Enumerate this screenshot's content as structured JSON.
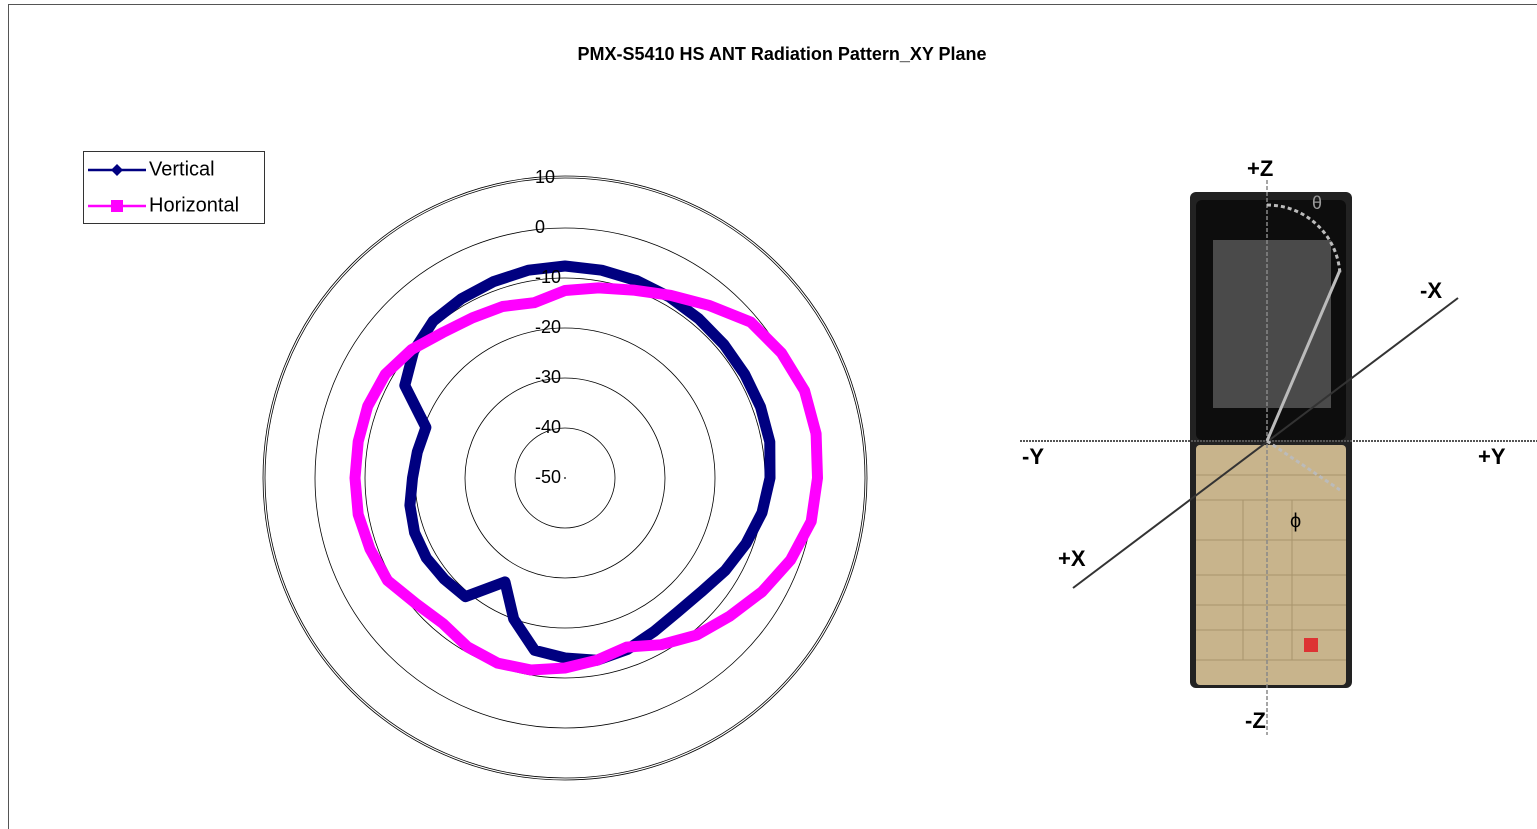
{
  "chart_data": {
    "type": "radar",
    "title": "PMX-S5410 HS ANT Radiation Pattern_XY Plane",
    "categories": [
      null,
      null,
      null,
      null,
      null,
      null,
      null,
      null,
      null,
      null,
      null,
      null,
      null,
      null,
      null,
      null,
      null,
      null,
      null,
      null,
      null,
      null,
      null,
      null,
      null,
      null,
      null,
      null,
      null,
      null,
      null,
      null,
      null,
      null,
      null,
      null
    ],
    "series": [
      {
        "name": "Vertical",
        "color": "#000080",
        "values": [
          -7.6,
          -7.8,
          -8,
          -8.2,
          -8.4,
          -8.5,
          -8.5,
          -8.4,
          -8.4,
          -9,
          -10,
          -11.5,
          -13,
          -14.5,
          -15,
          -14.5,
          -13.5,
          -13,
          -14,
          -15,
          -20,
          -26,
          -19,
          -18.5,
          -18,
          -18,
          -18.5,
          -19.5,
          -20,
          -20.4,
          -13,
          -10.5,
          -9,
          -8.6,
          -8.2,
          -7.8
        ]
      },
      {
        "name": "Horizontal",
        "color": "#ff00ff",
        "values": [
          -12.5,
          -11.4,
          -10,
          -7.8,
          -5,
          -1.5,
          0,
          1,
          1,
          0.5,
          0,
          -2,
          -4.5,
          -7,
          -9,
          -11.5,
          -14,
          -13,
          -12,
          -11,
          -10.6,
          -11,
          -12,
          -11,
          -9,
          -8.5,
          -8,
          -8,
          -8,
          -8,
          -8.5,
          -10,
          -12,
          -13,
          -13.5,
          -14.4
        ]
      }
    ],
    "ylim": [
      -50,
      10
    ],
    "yticks": [
      -50,
      -40,
      -30,
      -20,
      -10,
      0,
      10
    ],
    "grid": true,
    "legend": "top-left"
  },
  "figure": {
    "labels": {
      "plus_z": "+Z",
      "minus_z": "-Z",
      "plus_y": "+Y",
      "minus_y": "-Y",
      "plus_x": "+X",
      "minus_x": "-X",
      "phi": "ϕ",
      "theta": "θ"
    }
  }
}
